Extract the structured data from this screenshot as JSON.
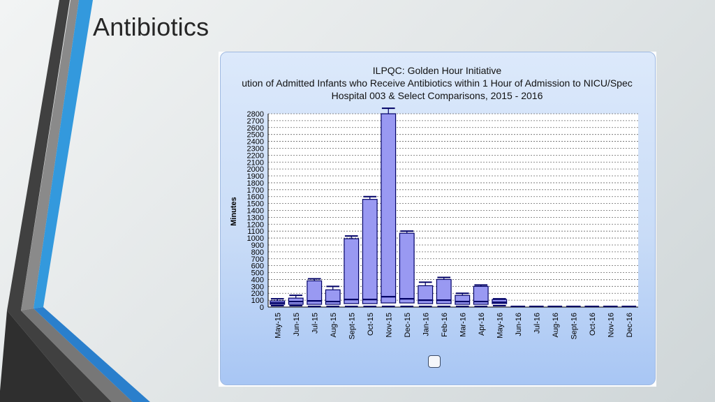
{
  "slide": {
    "title": "Antibiotics"
  },
  "chart_data": {
    "type": "box",
    "title_lines": [
      "ILPQC: Golden Hour Initiative",
      "ution of Admitted Infants who Receive Antibiotics within 1 Hour of Admission to NICU/Spec",
      "Hospital 003 & Select Comparisons, 2015 - 2016"
    ],
    "ylabel": "Minutes",
    "xlabel": "",
    "ylim": [
      0,
      2800
    ],
    "yticks": [
      0,
      100,
      200,
      300,
      400,
      500,
      600,
      700,
      800,
      900,
      1000,
      1100,
      1200,
      1300,
      1400,
      1500,
      1600,
      1700,
      1800,
      1900,
      2000,
      2100,
      2200,
      2300,
      2400,
      2500,
      2600,
      2700,
      2800
    ],
    "grid": true,
    "categories": [
      "May-15",
      "Jun-15",
      "Jul-15",
      "Aug-15",
      "Sept-15",
      "Oct-15",
      "Nov-15",
      "Dec-15",
      "Jan-16",
      "Feb-16",
      "Mar-16",
      "Apr-16",
      "May-16",
      "Jun-16",
      "Jul-16",
      "Aug-16",
      "Sept-16",
      "Oct-16",
      "Nov-16",
      "Dec-16"
    ],
    "boxes": [
      {
        "min": 20,
        "q1": 40,
        "median": 60,
        "q3": 90,
        "max": 120
      },
      {
        "min": 20,
        "q1": 40,
        "median": 80,
        "q3": 130,
        "max": 170
      },
      {
        "min": 10,
        "q1": 40,
        "median": 90,
        "q3": 380,
        "max": 410
      },
      {
        "min": 10,
        "q1": 40,
        "median": 80,
        "q3": 250,
        "max": 300
      },
      {
        "min": 10,
        "q1": 50,
        "median": 110,
        "q3": 990,
        "max": 1030
      },
      {
        "min": 10,
        "q1": 50,
        "median": 110,
        "q3": 1560,
        "max": 1600
      },
      {
        "min": 10,
        "q1": 60,
        "median": 150,
        "q3": 2800,
        "max": 2880
      },
      {
        "min": 10,
        "q1": 60,
        "median": 120,
        "q3": 1070,
        "max": 1100
      },
      {
        "min": 10,
        "q1": 50,
        "median": 100,
        "q3": 310,
        "max": 360
      },
      {
        "min": 10,
        "q1": 50,
        "median": 100,
        "q3": 400,
        "max": 430
      },
      {
        "min": 10,
        "q1": 40,
        "median": 80,
        "q3": 170,
        "max": 200
      },
      {
        "min": 10,
        "q1": 40,
        "median": 80,
        "q3": 300,
        "max": 320
      },
      {
        "min": 20,
        "q1": 50,
        "median": 70,
        "q3": 110,
        "max": 120
      },
      {
        "min": 0,
        "q1": 0,
        "median": 0,
        "q3": 0,
        "max": 0
      },
      {
        "min": 0,
        "q1": 0,
        "median": 0,
        "q3": 0,
        "max": 0
      },
      {
        "min": 0,
        "q1": 0,
        "median": 0,
        "q3": 0,
        "max": 0
      },
      {
        "min": 0,
        "q1": 0,
        "median": 0,
        "q3": 0,
        "max": 0
      },
      {
        "min": 0,
        "q1": 0,
        "median": 0,
        "q3": 0,
        "max": 0
      },
      {
        "min": 0,
        "q1": 0,
        "median": 0,
        "q3": 0,
        "max": 0
      },
      {
        "min": 0,
        "q1": 0,
        "median": 0,
        "q3": 0,
        "max": 0
      }
    ],
    "colors": {
      "box_fill": "#9999f2",
      "box_stroke": "#000066",
      "grid": "#666666"
    }
  }
}
